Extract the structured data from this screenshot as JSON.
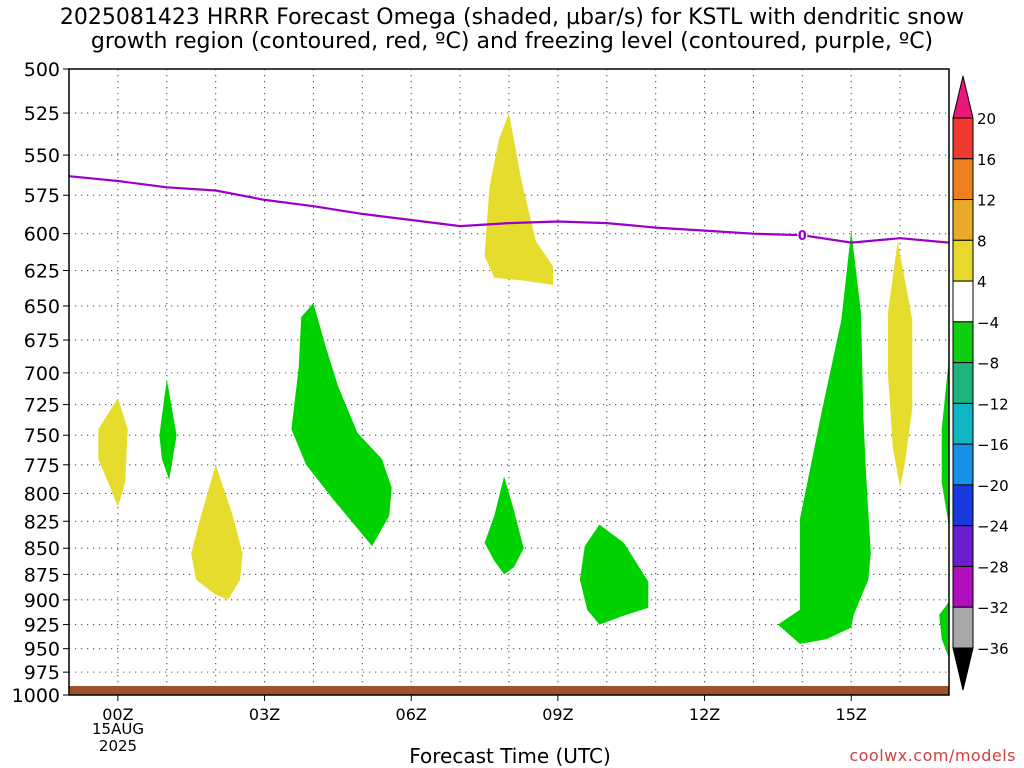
{
  "title_line1": "2025081423 HRRR Forecast Omega (shaded, µbar/s) for KSTL with dendritic snow",
  "title_line2": "growth region (contoured, red, ºC) and freezing level (contoured, purple, ºC)",
  "credit": "coolwx.com/models",
  "chart_data": {
    "type": "heatmap",
    "xlabel": "Forecast Time (UTC)",
    "x_ticks": [
      "00Z",
      "03Z",
      "06Z",
      "09Z",
      "12Z",
      "15Z"
    ],
    "x_tick_hours": [
      0,
      3,
      6,
      9,
      12,
      15
    ],
    "x_range_hours": [
      -1,
      17
    ],
    "date_label": [
      "15AUG",
      "2025"
    ],
    "y_ticks": [
      500,
      525,
      550,
      575,
      600,
      625,
      650,
      675,
      700,
      725,
      750,
      775,
      800,
      825,
      850,
      875,
      900,
      925,
      950,
      975,
      1000
    ],
    "y_range_hpa": [
      500,
      1000
    ],
    "grid": true,
    "colorbar": {
      "levels": [
        "20",
        "16",
        "12",
        "8",
        "4",
        "−4",
        "−8",
        "−12",
        "−16",
        "−20",
        "−24",
        "−28",
        "−32",
        "−36"
      ],
      "colors": [
        "#e8177a",
        "#f03a30",
        "#ee7f1e",
        "#e8ab27",
        "#e8d82e",
        "#ffffff",
        "#0fce0f",
        "#1fb37d",
        "#10b5c2",
        "#1790e8",
        "#1a3ae0",
        "#6a1ed0",
        "#b00dbd",
        "#a8a8a8",
        "#000000"
      ]
    },
    "freezing_level": {
      "label": "0",
      "color": "#9a00c8",
      "points": [
        [
          -1,
          563
        ],
        [
          0,
          566
        ],
        [
          1,
          570
        ],
        [
          2,
          572
        ],
        [
          3,
          578
        ],
        [
          4,
          582
        ],
        [
          5,
          587
        ],
        [
          6,
          591
        ],
        [
          7,
          595
        ],
        [
          8,
          593
        ],
        [
          9,
          592
        ],
        [
          10,
          593
        ],
        [
          11,
          596
        ],
        [
          12,
          598
        ],
        [
          13,
          600
        ],
        [
          14,
          601
        ],
        [
          15,
          606
        ],
        [
          16,
          603
        ],
        [
          17,
          606
        ]
      ]
    },
    "omega_regions": [
      {
        "sign": "positive",
        "color": "#e6dc2e",
        "points": [
          [
            -0.4,
            745
          ],
          [
            0,
            720
          ],
          [
            0.2,
            745
          ],
          [
            0.15,
            790
          ],
          [
            0,
            812
          ],
          [
            -0.2,
            790
          ],
          [
            -0.4,
            770
          ]
        ]
      },
      {
        "sign": "negative",
        "color": "#00d200",
        "points": [
          [
            0.85,
            750
          ],
          [
            1.0,
            705
          ],
          [
            1.2,
            750
          ],
          [
            1.05,
            788
          ],
          [
            0.9,
            770
          ]
        ]
      },
      {
        "sign": "positive",
        "color": "#e6dc2e",
        "points": [
          [
            1.5,
            855
          ],
          [
            1.7,
            820
          ],
          [
            2.0,
            775
          ],
          [
            2.35,
            820
          ],
          [
            2.55,
            855
          ],
          [
            2.5,
            880
          ],
          [
            2.25,
            900
          ],
          [
            2.0,
            895
          ],
          [
            1.6,
            880
          ]
        ]
      },
      {
        "sign": "negative",
        "color": "#00d200",
        "points": [
          [
            3.55,
            745
          ],
          [
            3.7,
            695
          ],
          [
            3.75,
            658
          ],
          [
            4.0,
            648
          ],
          [
            4.25,
            680
          ],
          [
            4.5,
            710
          ],
          [
            4.9,
            748
          ],
          [
            5.4,
            770
          ],
          [
            5.6,
            795
          ],
          [
            5.55,
            820
          ],
          [
            5.2,
            848
          ],
          [
            4.4,
            805
          ],
          [
            3.85,
            775
          ]
        ]
      },
      {
        "sign": "positive",
        "color": "#e6dc2e",
        "points": [
          [
            7.5,
            615
          ],
          [
            7.6,
            570
          ],
          [
            7.8,
            540
          ],
          [
            8.0,
            525
          ],
          [
            8.25,
            565
          ],
          [
            8.55,
            605
          ],
          [
            8.9,
            622
          ],
          [
            8.9,
            635
          ],
          [
            8.3,
            632
          ],
          [
            7.7,
            630
          ]
        ]
      },
      {
        "sign": "negative",
        "color": "#00d200",
        "points": [
          [
            7.5,
            845
          ],
          [
            7.7,
            820
          ],
          [
            7.9,
            785
          ],
          [
            8.1,
            815
          ],
          [
            8.3,
            850
          ],
          [
            8.1,
            868
          ],
          [
            7.9,
            875
          ],
          [
            7.7,
            862
          ]
        ]
      },
      {
        "sign": "negative",
        "color": "#00d200",
        "points": [
          [
            9.45,
            880
          ],
          [
            9.55,
            848
          ],
          [
            9.85,
            828
          ],
          [
            10.35,
            845
          ],
          [
            10.85,
            882
          ],
          [
            10.85,
            908
          ],
          [
            10.4,
            915
          ],
          [
            9.85,
            925
          ],
          [
            9.6,
            910
          ]
        ]
      },
      {
        "sign": "negative",
        "color": "#00d200",
        "points": [
          [
            13.5,
            925
          ],
          [
            13.95,
            910
          ],
          [
            13.95,
            823
          ],
          [
            14.4,
            730
          ],
          [
            14.8,
            660
          ],
          [
            15.0,
            598
          ],
          [
            15.2,
            655
          ],
          [
            15.25,
            735
          ],
          [
            15.3,
            780
          ],
          [
            15.4,
            855
          ],
          [
            15.35,
            880
          ],
          [
            15.05,
            915
          ],
          [
            15.0,
            928
          ],
          [
            14.5,
            940
          ],
          [
            13.95,
            945
          ]
        ]
      },
      {
        "sign": "positive",
        "color": "#e6dc2e",
        "points": [
          [
            15.75,
            655
          ],
          [
            15.95,
            605
          ],
          [
            16.25,
            660
          ],
          [
            16.25,
            728
          ],
          [
            16.1,
            773
          ],
          [
            16.0,
            795
          ],
          [
            15.85,
            760
          ],
          [
            15.75,
            700
          ]
        ]
      },
      {
        "sign": "negative",
        "color": "#00d200",
        "points": [
          [
            17.0,
            688
          ],
          [
            17.0,
            830
          ],
          [
            16.85,
            790
          ],
          [
            16.85,
            745
          ]
        ]
      },
      {
        "sign": "negative",
        "color": "#00d200",
        "points": [
          [
            17.0,
            902
          ],
          [
            17.0,
            960
          ],
          [
            16.85,
            940
          ],
          [
            16.8,
            915
          ]
        ]
      }
    ]
  }
}
